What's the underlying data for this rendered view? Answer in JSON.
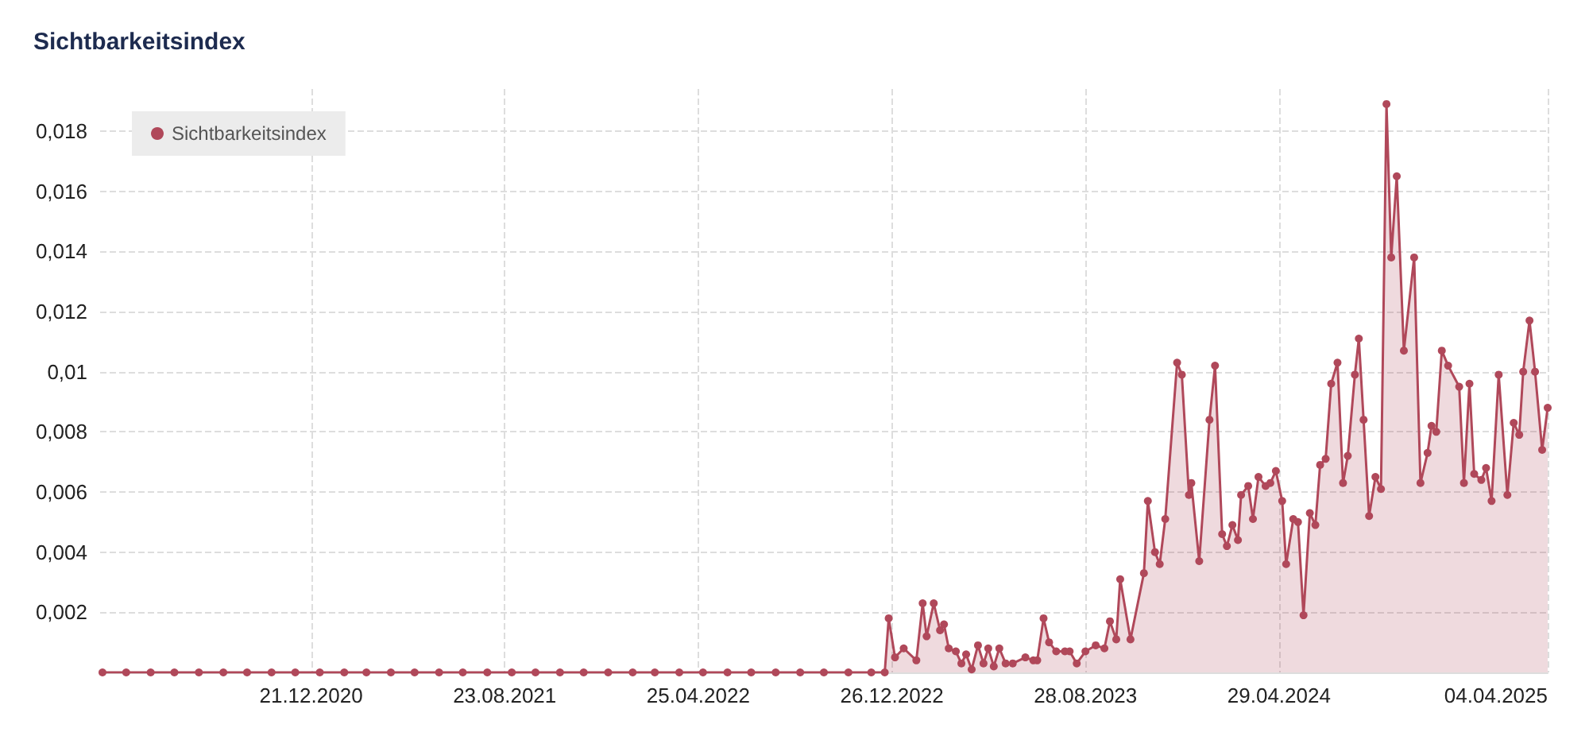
{
  "chart_data": {
    "type": "area",
    "title": "Sichtbarkeitsindex",
    "legend": "top left",
    "grid": true,
    "marker": "circle",
    "line_style": "solid",
    "xlim": [
      "2020-03-29",
      "2025-04-04"
    ],
    "xticks": [
      {
        "value": "2020-12-21",
        "label": "21.12.2020"
      },
      {
        "value": "2021-08-23",
        "label": "23.08.2021"
      },
      {
        "value": "2022-04-25",
        "label": "25.04.2022"
      },
      {
        "value": "2022-12-26",
        "label": "26.12.2022"
      },
      {
        "value": "2023-08-28",
        "label": "28.08.2023"
      },
      {
        "value": "2024-04-29",
        "label": "29.04.2024"
      },
      {
        "value": "2025-04-04",
        "label": "04.04.2025"
      }
    ],
    "ylim": [
      0,
      0.0194
    ],
    "yticks": [
      {
        "value": 0.002,
        "label": "0,002"
      },
      {
        "value": 0.004,
        "label": "0,004"
      },
      {
        "value": 0.006,
        "label": "0,006"
      },
      {
        "value": 0.008,
        "label": "0,008"
      },
      {
        "value": 0.01,
        "label": "0,01"
      },
      {
        "value": 0.012,
        "label": "0,012"
      },
      {
        "value": 0.014,
        "label": "0,014"
      },
      {
        "value": 0.016,
        "label": "0,016"
      },
      {
        "value": 0.018,
        "label": "0,018"
      }
    ],
    "x": [
      "2020-04-01",
      "2020-05-01",
      "2020-06-01",
      "2020-07-01",
      "2020-08-01",
      "2020-09-01",
      "2020-10-01",
      "2020-11-01",
      "2020-12-01",
      "2021-01-01",
      "2021-02-01",
      "2021-03-01",
      "2021-04-01",
      "2021-05-01",
      "2021-06-01",
      "2021-07-01",
      "2021-08-01",
      "2021-09-01",
      "2021-10-01",
      "2021-11-01",
      "2021-12-01",
      "2022-01-01",
      "2022-02-01",
      "2022-03-01",
      "2022-04-01",
      "2022-05-01",
      "2022-06-01",
      "2022-07-01",
      "2022-08-01",
      "2022-09-01",
      "2022-10-01",
      "2022-11-01",
      "2022-11-30",
      "2022-12-17",
      "2022-12-22",
      "2022-12-30",
      "2023-01-10",
      "2023-01-26",
      "2023-02-03",
      "2023-02-08",
      "2023-02-17",
      "2023-02-25",
      "2023-03-02",
      "2023-03-08",
      "2023-03-17",
      "2023-03-24",
      "2023-03-30",
      "2023-04-06",
      "2023-04-14",
      "2023-04-21",
      "2023-04-27",
      "2023-05-04",
      "2023-05-11",
      "2023-05-19",
      "2023-05-28",
      "2023-06-13",
      "2023-06-23",
      "2023-06-28",
      "2023-07-06",
      "2023-07-13",
      "2023-07-22",
      "2023-08-02",
      "2023-08-08",
      "2023-08-17",
      "2023-08-28",
      "2023-09-10",
      "2023-09-21",
      "2023-09-28",
      "2023-10-06",
      "2023-10-11",
      "2023-10-24",
      "2023-11-10",
      "2023-11-15",
      "2023-11-24",
      "2023-11-30",
      "2023-12-07",
      "2023-12-22",
      "2023-12-28",
      "2024-01-06",
      "2024-01-09",
      "2024-01-19",
      "2024-02-01",
      "2024-02-08",
      "2024-02-17",
      "2024-02-23",
      "2024-03-01",
      "2024-03-08",
      "2024-03-12",
      "2024-03-21",
      "2024-03-27",
      "2024-04-03",
      "2024-04-12",
      "2024-04-18",
      "2024-04-25",
      "2024-05-03",
      "2024-05-08",
      "2024-05-17",
      "2024-05-23",
      "2024-05-30",
      "2024-06-07",
      "2024-06-14",
      "2024-06-20",
      "2024-06-27",
      "2024-07-04",
      "2024-07-12",
      "2024-07-19",
      "2024-07-25",
      "2024-08-03",
      "2024-08-08",
      "2024-08-14",
      "2024-08-21",
      "2024-08-29",
      "2024-09-05",
      "2024-09-12",
      "2024-09-18",
      "2024-09-25",
      "2024-10-04",
      "2024-10-17",
      "2024-10-25",
      "2024-11-03",
      "2024-11-08",
      "2024-11-14",
      "2024-11-21",
      "2024-11-29",
      "2024-12-13",
      "2024-12-19",
      "2024-12-26",
      "2025-01-01",
      "2025-01-10",
      "2025-01-16",
      "2025-01-23",
      "2025-02-01",
      "2025-02-12",
      "2025-02-20",
      "2025-02-27",
      "2025-03-04",
      "2025-03-12",
      "2025-03-19",
      "2025-03-28",
      "2025-04-04"
    ],
    "series": [
      {
        "name": "Sichtbarkeitsindex",
        "color": "#b0485a",
        "values": [
          0,
          0,
          0,
          0,
          0,
          0,
          0,
          0,
          0,
          0,
          0,
          0,
          0,
          0,
          0,
          0,
          0,
          0,
          0,
          0,
          0,
          0,
          0,
          0,
          0,
          0,
          0,
          0,
          0,
          0,
          0,
          0,
          0,
          0,
          0.0018,
          0.0005,
          0.0008,
          0.0004,
          0.0023,
          0.0012,
          0.0023,
          0.0014,
          0.0016,
          0.0008,
          0.0007,
          0.0003,
          0.0006,
          0.0001,
          0.0009,
          0.0003,
          0.0008,
          0.0002,
          0.0008,
          0.0003,
          0.0003,
          0.0005,
          0.0004,
          0.0004,
          0.0018,
          0.001,
          0.0007,
          0.0007,
          0.0007,
          0.0003,
          0.0007,
          0.0009,
          0.0008,
          0.0017,
          0.0011,
          0.0031,
          0.0011,
          0.0033,
          0.0057,
          0.004,
          0.0036,
          0.0051,
          0.0103,
          0.0099,
          0.0059,
          0.0063,
          0.0037,
          0.0084,
          0.0102,
          0.0046,
          0.0042,
          0.0049,
          0.0044,
          0.0059,
          0.0062,
          0.0051,
          0.0065,
          0.0062,
          0.0063,
          0.0067,
          0.0057,
          0.0036,
          0.0051,
          0.005,
          0.0019,
          0.0053,
          0.0049,
          0.0069,
          0.0071,
          0.0096,
          0.0103,
          0.0063,
          0.0072,
          0.0099,
          0.0111,
          0.0084,
          0.0052,
          0.0065,
          0.0061,
          0.0189,
          0.0138,
          0.0165,
          0.0107,
          0.0138,
          0.0063,
          0.0073,
          0.0082,
          0.008,
          0.0107,
          0.0102,
          0.0095,
          0.0063,
          0.0096,
          0.0066,
          0.0064,
          0.0068,
          0.0057,
          0.0099,
          0.0059,
          0.0083,
          0.0079,
          0.01,
          0.0117,
          0.01,
          0.0074,
          0.0088
        ]
      }
    ]
  }
}
